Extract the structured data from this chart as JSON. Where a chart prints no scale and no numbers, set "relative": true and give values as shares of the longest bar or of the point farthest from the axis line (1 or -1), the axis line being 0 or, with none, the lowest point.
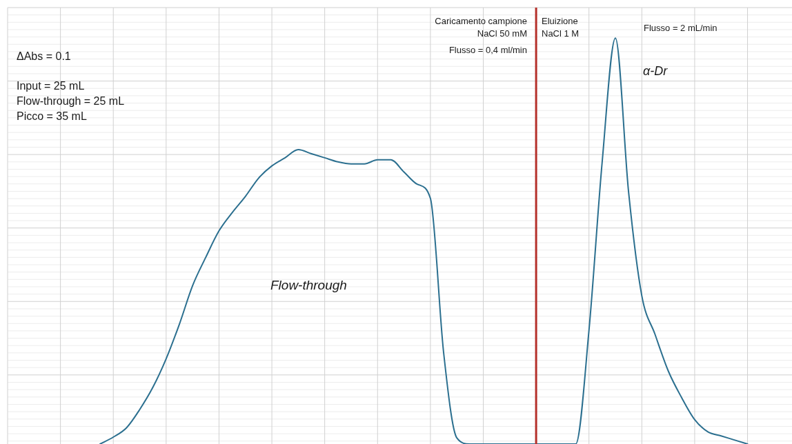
{
  "chart_data": {
    "type": "line",
    "relative": true,
    "grid": true,
    "legend": false,
    "marker": "none",
    "line_style": "solid",
    "categories": [
      null,
      null,
      null,
      null,
      null,
      null,
      null,
      null,
      null,
      null,
      null,
      null,
      null,
      null,
      null,
      null,
      null,
      null,
      null,
      null,
      null,
      null,
      null,
      null,
      null,
      null,
      null,
      null,
      null,
      null,
      null,
      null,
      null,
      null,
      null,
      null,
      null,
      null,
      null,
      null,
      null,
      null,
      null,
      null,
      null,
      null,
      null,
      null,
      null,
      null,
      null,
      null,
      null,
      null,
      null,
      null,
      null,
      null,
      null,
      null
    ],
    "series": [
      {
        "color": "#2b6f8f",
        "values": [
          null,
          null,
          null,
          null,
          null,
          null,
          null,
          0,
          0.017,
          0.04,
          0.085,
          0.14,
          0.21,
          0.295,
          0.39,
          0.46,
          0.525,
          0.57,
          0.61,
          0.655,
          0.685,
          0.705,
          0.725,
          0.715,
          0.705,
          0.695,
          0.69,
          0.69,
          0.7,
          0.7,
          0.67,
          0.64,
          0.605,
          0.225,
          0.015,
          0,
          0,
          0,
          0,
          0,
          0,
          0,
          0,
          0,
          0.28,
          0.695,
          1,
          0.62,
          0.365,
          0.27,
          0.18,
          0.115,
          0.06,
          0.03,
          0.02,
          0.01,
          0,
          null,
          null,
          null
        ]
      }
    ],
    "annotations": [
      "ΔAbs = 0.1",
      "Input = 25 mL",
      "Flow-through = 25 mL",
      "Picco = 35 mL",
      "Caricamento campione",
      "NaCl 50 mM",
      "Flusso = 0,4 ml/min",
      "Eluizione",
      "NaCl 1 M",
      "Flusso = 2 mL/min",
      "α-Dr",
      "Flow-through"
    ]
  }
}
